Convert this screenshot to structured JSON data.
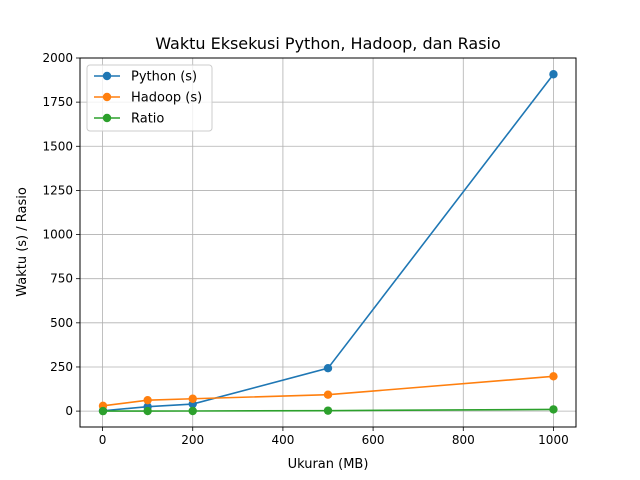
{
  "chart_data": {
    "type": "line",
    "title": "Waktu Eksekusi Python, Hadoop, dan Rasio",
    "xlabel": "Ukuran (MB)",
    "ylabel": "Waktu (s) / Rasio",
    "xlim": [
      -50,
      1050
    ],
    "ylim": [
      -90,
      2000
    ],
    "xticks": [
      0,
      200,
      400,
      600,
      800,
      1000
    ],
    "yticks": [
      0,
      250,
      500,
      750,
      1000,
      1250,
      1500,
      1750,
      2000
    ],
    "grid": true,
    "legend_position": "top-left",
    "x": [
      1,
      100,
      200,
      500,
      1000
    ],
    "series": [
      {
        "name": "Python (s)",
        "color": "#1f77b4",
        "values": [
          2,
          25,
          40,
          243,
          1908
        ]
      },
      {
        "name": "Hadoop (s)",
        "color": "#ff7f0e",
        "values": [
          30,
          62,
          70,
          93,
          197
        ]
      },
      {
        "name": "Ratio",
        "color": "#2ca02c",
        "values": [
          0.07,
          0.4,
          0.57,
          2.6,
          9.7
        ]
      }
    ]
  }
}
